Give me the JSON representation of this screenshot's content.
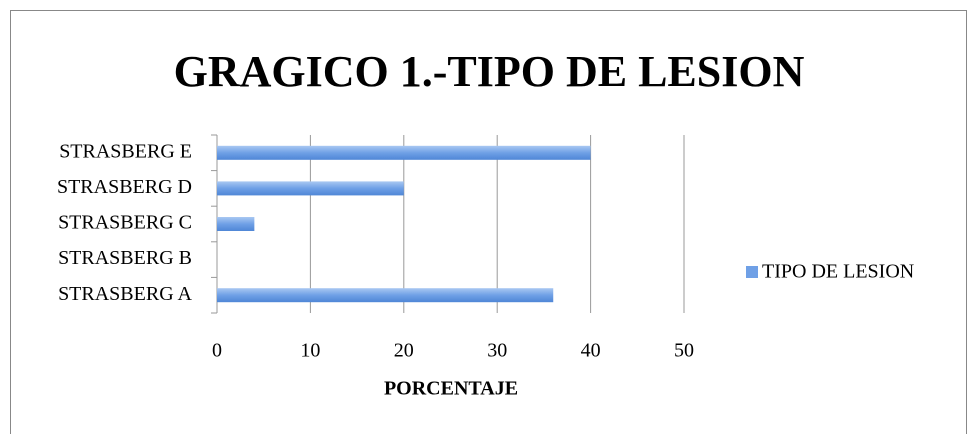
{
  "chart_data": {
    "type": "bar",
    "orientation": "horizontal",
    "title": "GRAGICO 1.-TIPO DE LESION",
    "x_label": "PORCENTAJE",
    "categories": [
      "STRASBERG A",
      "STRASBERG B",
      "STRASBERG C",
      "STRASBERG D",
      "STRASBERG E"
    ],
    "series": [
      {
        "name": "TIPO DE LESION",
        "color": "#6fa0e6",
        "values": [
          36,
          0,
          4,
          20,
          40
        ]
      }
    ],
    "xlim": [
      0,
      50
    ],
    "xticks": [
      0,
      10,
      20,
      30,
      40,
      50
    ],
    "grid": true,
    "legend": "right"
  }
}
